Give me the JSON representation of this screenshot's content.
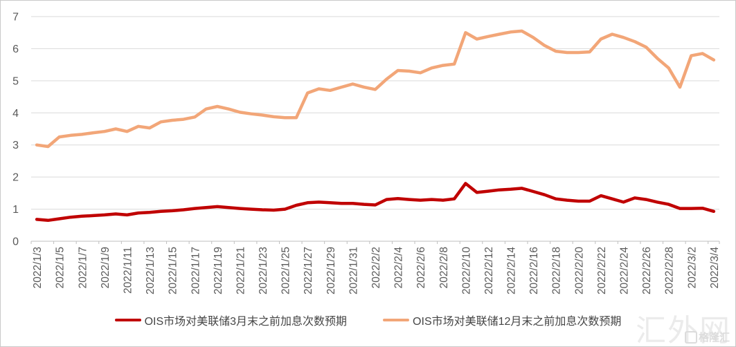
{
  "watermark": {
    "site_name": "汇外网",
    "logo_text": "格隆汇"
  },
  "chart_data": {
    "type": "line",
    "title": "",
    "xlabel": "",
    "ylabel": "",
    "ylim": [
      0,
      7
    ],
    "yticks": [
      0,
      1,
      2,
      3,
      4,
      5,
      6,
      7
    ],
    "x_label_interval": 2,
    "grid": true,
    "legend_position": "bottom",
    "colors": {
      "grid": "#d9d9d9",
      "axis": "#bfbfbf",
      "tick_label": "#595959"
    },
    "x": [
      "2022/1/3",
      "2022/1/4",
      "2022/1/5",
      "2022/1/6",
      "2022/1/7",
      "2022/1/8",
      "2022/1/9",
      "2022/1/10",
      "2022/1/11",
      "2022/1/12",
      "2022/1/13",
      "2022/1/14",
      "2022/1/15",
      "2022/1/16",
      "2022/1/17",
      "2022/1/18",
      "2022/1/19",
      "2022/1/20",
      "2022/1/21",
      "2022/1/22",
      "2022/1/23",
      "2022/1/24",
      "2022/1/25",
      "2022/1/26",
      "2022/1/27",
      "2022/1/28",
      "2022/1/29",
      "2022/1/30",
      "2022/1/31",
      "2022/2/1",
      "2022/2/2",
      "2022/2/3",
      "2022/2/4",
      "2022/2/5",
      "2022/2/6",
      "2022/2/7",
      "2022/2/8",
      "2022/2/9",
      "2022/2/10",
      "2022/2/11",
      "2022/2/12",
      "2022/2/13",
      "2022/2/14",
      "2022/2/15",
      "2022/2/16",
      "2022/2/17",
      "2022/2/18",
      "2022/2/19",
      "2022/2/20",
      "2022/2/21",
      "2022/2/22",
      "2022/2/23",
      "2022/2/24",
      "2022/2/25",
      "2022/2/26",
      "2022/2/27",
      "2022/2/28",
      "2022/3/1",
      "2022/3/2",
      "2022/3/3",
      "2022/3/4"
    ],
    "series": [
      {
        "name": "OIS市场对美联储3月末之前加息次数预期",
        "color": "#c00000",
        "values": [
          0.68,
          0.65,
          0.7,
          0.75,
          0.78,
          0.8,
          0.82,
          0.85,
          0.82,
          0.88,
          0.9,
          0.93,
          0.95,
          0.98,
          1.02,
          1.05,
          1.08,
          1.05,
          1.02,
          1.0,
          0.98,
          0.97,
          1.0,
          1.12,
          1.2,
          1.22,
          1.2,
          1.18,
          1.18,
          1.15,
          1.13,
          1.3,
          1.33,
          1.3,
          1.28,
          1.3,
          1.28,
          1.32,
          1.8,
          1.52,
          1.56,
          1.6,
          1.62,
          1.65,
          1.55,
          1.45,
          1.32,
          1.28,
          1.25,
          1.25,
          1.42,
          1.32,
          1.22,
          1.35,
          1.3,
          1.22,
          1.15,
          1.02,
          1.02,
          1.03,
          0.93
        ]
      },
      {
        "name": "OIS市场对美联储12月末之前加息次数预期",
        "color": "#f2a678",
        "values": [
          3.0,
          2.95,
          3.25,
          3.3,
          3.33,
          3.38,
          3.42,
          3.5,
          3.42,
          3.58,
          3.53,
          3.72,
          3.77,
          3.8,
          3.87,
          4.12,
          4.2,
          4.12,
          4.02,
          3.97,
          3.93,
          3.88,
          3.85,
          3.85,
          4.62,
          4.75,
          4.7,
          4.8,
          4.9,
          4.8,
          4.73,
          5.05,
          5.32,
          5.3,
          5.25,
          5.4,
          5.48,
          5.52,
          6.5,
          6.3,
          6.38,
          6.45,
          6.52,
          6.55,
          6.35,
          6.1,
          5.92,
          5.88,
          5.88,
          5.9,
          6.3,
          6.45,
          6.35,
          6.22,
          6.05,
          5.7,
          5.4,
          4.8,
          5.78,
          5.85,
          5.65
        ]
      }
    ]
  }
}
